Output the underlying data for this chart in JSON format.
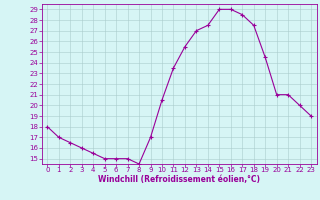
{
  "x": [
    0,
    1,
    2,
    3,
    4,
    5,
    6,
    7,
    8,
    9,
    10,
    11,
    12,
    13,
    14,
    15,
    16,
    17,
    18,
    19,
    20,
    21,
    22,
    23
  ],
  "y": [
    18,
    17,
    16.5,
    16,
    15.5,
    15,
    15,
    15,
    14.5,
    17,
    20.5,
    23.5,
    25.5,
    27,
    27.5,
    29,
    29,
    28.5,
    27.5,
    24.5,
    21,
    21,
    20,
    19
  ],
  "line_color": "#990099",
  "marker": "+",
  "markersize": 3,
  "linewidth": 0.8,
  "markeredgewidth": 0.8,
  "bg_color": "#d6f5f5",
  "grid_color": "#aacccc",
  "xlabel": "Windchill (Refroidissement éolien,°C)",
  "xlabel_color": "#990099",
  "tick_color": "#990099",
  "spine_color": "#990099",
  "yticks": [
    15,
    16,
    17,
    18,
    19,
    20,
    21,
    22,
    23,
    24,
    25,
    26,
    27,
    28,
    29
  ],
  "xticks": [
    0,
    1,
    2,
    3,
    4,
    5,
    6,
    7,
    8,
    9,
    10,
    11,
    12,
    13,
    14,
    15,
    16,
    17,
    18,
    19,
    20,
    21,
    22,
    23
  ],
  "ylim": [
    14.5,
    29.5
  ],
  "xlim": [
    -0.5,
    23.5
  ],
  "tick_fontsize": 5,
  "xlabel_fontsize": 5.5,
  "xlabel_fontweight": "bold"
}
